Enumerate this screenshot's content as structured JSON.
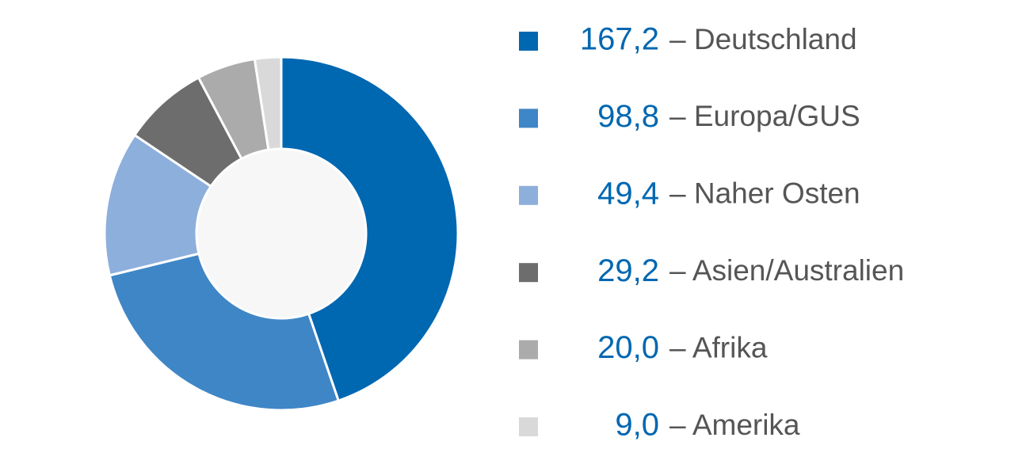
{
  "chart_data": {
    "type": "donut",
    "categories": [
      "– Deutschland",
      "– Europa/GUS",
      "– Naher Osten",
      "– Asien/Australien",
      "– Afrika",
      "– Amerika"
    ],
    "values": [
      167.2,
      98.8,
      49.4,
      29.2,
      20.0,
      9.0
    ],
    "value_labels": [
      "167,2",
      "98,8",
      "49,4",
      "29,2",
      "20,0",
      "9,0"
    ],
    "colors": [
      "#0067b1",
      "#3f86c6",
      "#8dafdc",
      "#6d6d6d",
      "#ababab",
      "#d9d9d9"
    ],
    "legend": "right"
  }
}
